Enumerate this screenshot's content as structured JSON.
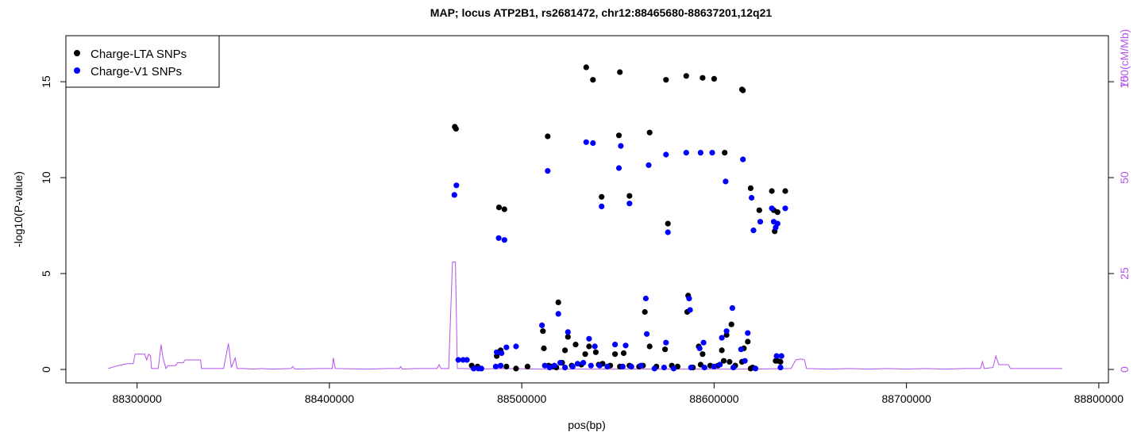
{
  "chart_data": {
    "type": "scatter",
    "title": "MAP; locus ATP2B1, rs2681472, chr12:88465680-88637201,12q21",
    "xlabel": "pos(bp)",
    "ylabel": "-log10(P-value)",
    "y2label": "100(cM/Mb)",
    "xlim": [
      88263000,
      88805000
    ],
    "ylim": [
      -0.7,
      17.4
    ],
    "y2lim": [
      -3.5,
      87
    ],
    "x_ticks": [
      88300000,
      88400000,
      88500000,
      88600000,
      88700000,
      88800000
    ],
    "x_tick_labels": [
      "88300000",
      "88400000",
      "88500000",
      "88600000",
      "88700000",
      "88800000"
    ],
    "y_ticks": [
      0,
      5,
      10,
      15
    ],
    "y_tick_labels": [
      "0",
      "5",
      "10",
      "15"
    ],
    "y2_ticks": [
      0,
      25,
      50,
      75,
      100
    ],
    "y2_tick_labels": [
      "0",
      "25",
      "50",
      "75",
      "100"
    ],
    "legend": {
      "position": "top-left",
      "entries": [
        {
          "label": "Charge-LTA SNPs",
          "color": "#000000"
        },
        {
          "label": "Charge-V1 SNPs",
          "color": "#0000ff"
        }
      ]
    },
    "colors": {
      "lta": "#000000",
      "v1": "#0000ff",
      "recomb": "#b450f0",
      "y2_axis": "#b450f0"
    },
    "series": [
      {
        "name": "Charge-LTA SNPs",
        "color": "#000000",
        "points": [
          [
            88465200,
            12.65
          ],
          [
            88465800,
            12.55
          ],
          [
            88488200,
            8.45
          ],
          [
            88491000,
            8.35
          ],
          [
            88513500,
            12.15
          ],
          [
            88533500,
            15.75
          ],
          [
            88537000,
            15.1
          ],
          [
            88550500,
            12.2
          ],
          [
            88551000,
            15.5
          ],
          [
            88541500,
            9.0
          ],
          [
            88556000,
            9.05
          ],
          [
            88566500,
            12.35
          ],
          [
            88575000,
            15.1
          ],
          [
            88576000,
            7.6
          ],
          [
            88585500,
            15.3
          ],
          [
            88594000,
            15.2
          ],
          [
            88600000,
            15.15
          ],
          [
            88605500,
            11.3
          ],
          [
            88614500,
            14.6
          ],
          [
            88615000,
            14.55
          ],
          [
            88619000,
            9.45
          ],
          [
            88623500,
            8.3
          ],
          [
            88630000,
            9.3
          ],
          [
            88631000,
            8.3
          ],
          [
            88633000,
            8.2
          ],
          [
            88637000,
            9.3
          ],
          [
            88631500,
            7.2
          ],
          [
            88519000,
            3.5
          ],
          [
            88511000,
            2.0
          ],
          [
            88511500,
            1.1
          ],
          [
            88522500,
            1.0
          ],
          [
            88524000,
            1.7
          ],
          [
            88528000,
            1.3
          ],
          [
            88533000,
            0.8
          ],
          [
            88535000,
            1.2
          ],
          [
            88538500,
            0.9
          ],
          [
            88542000,
            0.3
          ],
          [
            88548500,
            0.8
          ],
          [
            88553000,
            0.85
          ],
          [
            88566500,
            1.2
          ],
          [
            88564000,
            3.0
          ],
          [
            88574500,
            1.05
          ],
          [
            88586500,
            3.85
          ],
          [
            88586000,
            3.0
          ],
          [
            88592000,
            1.2
          ],
          [
            88594000,
            0.8
          ],
          [
            88604000,
            1.0
          ],
          [
            88606500,
            1.8
          ],
          [
            88609000,
            2.35
          ],
          [
            88614500,
            0.4
          ],
          [
            88615500,
            1.1
          ],
          [
            88617500,
            1.45
          ],
          [
            88620000,
            0.1
          ],
          [
            88633000,
            0.45
          ],
          [
            88634500,
            0.4
          ],
          [
            88474000,
            0.2
          ],
          [
            88477000,
            0.15
          ],
          [
            88487000,
            0.7
          ],
          [
            88489000,
            1.0
          ],
          [
            88492000,
            0.15
          ],
          [
            88497000,
            0.05
          ],
          [
            88503000,
            0.15
          ],
          [
            88514000,
            0.2
          ],
          [
            88516000,
            0.15
          ],
          [
            88518000,
            0.1
          ],
          [
            88521000,
            0.35
          ],
          [
            88526000,
            0.2
          ],
          [
            88531000,
            0.25
          ],
          [
            88540000,
            0.25
          ],
          [
            88546000,
            0.2
          ],
          [
            88551000,
            0.15
          ],
          [
            88556000,
            0.2
          ],
          [
            88561000,
            0.15
          ],
          [
            88563000,
            0.2
          ],
          [
            88570000,
            0.15
          ],
          [
            88578000,
            0.2
          ],
          [
            88581000,
            0.15
          ],
          [
            88589000,
            0.1
          ],
          [
            88593000,
            0.25
          ],
          [
            88598000,
            0.2
          ],
          [
            88602000,
            0.2
          ],
          [
            88605000,
            0.45
          ],
          [
            88608000,
            0.4
          ],
          [
            88611000,
            0.2
          ],
          [
            88619000,
            0.05
          ],
          [
            88632000,
            0.45
          ]
        ]
      },
      {
        "name": "Charge-V1 SNPs",
        "color": "#0000ff",
        "points": [
          [
            88465000,
            9.1
          ],
          [
            88466000,
            9.6
          ],
          [
            88488000,
            6.85
          ],
          [
            88491000,
            6.75
          ],
          [
            88513500,
            10.35
          ],
          [
            88533500,
            11.85
          ],
          [
            88537000,
            11.8
          ],
          [
            88550500,
            10.5
          ],
          [
            88551500,
            11.65
          ],
          [
            88541500,
            8.5
          ],
          [
            88556000,
            8.65
          ],
          [
            88566000,
            10.65
          ],
          [
            88575000,
            11.2
          ],
          [
            88576000,
            7.15
          ],
          [
            88585500,
            11.3
          ],
          [
            88593000,
            11.3
          ],
          [
            88599000,
            11.3
          ],
          [
            88606000,
            9.8
          ],
          [
            88615000,
            10.95
          ],
          [
            88619500,
            8.95
          ],
          [
            88620500,
            7.25
          ],
          [
            88624000,
            7.7
          ],
          [
            88630000,
            8.4
          ],
          [
            88631000,
            7.7
          ],
          [
            88633000,
            7.6
          ],
          [
            88637000,
            8.4
          ],
          [
            88632000,
            7.4
          ],
          [
            88510500,
            2.3
          ],
          [
            88519000,
            2.9
          ],
          [
            88524000,
            1.95
          ],
          [
            88535000,
            1.6
          ],
          [
            88538000,
            1.2
          ],
          [
            88548500,
            1.3
          ],
          [
            88554000,
            1.25
          ],
          [
            88564500,
            3.7
          ],
          [
            88565000,
            1.85
          ],
          [
            88575000,
            1.4
          ],
          [
            88587000,
            3.7
          ],
          [
            88587500,
            3.1
          ],
          [
            88592500,
            1.1
          ],
          [
            88594500,
            1.4
          ],
          [
            88604000,
            1.65
          ],
          [
            88606500,
            2.0
          ],
          [
            88609500,
            3.2
          ],
          [
            88614000,
            1.05
          ],
          [
            88617500,
            1.9
          ],
          [
            88616000,
            0.45
          ],
          [
            88632500,
            0.7
          ],
          [
            88635000,
            0.7
          ],
          [
            88467000,
            0.5
          ],
          [
            88469500,
            0.5
          ],
          [
            88471500,
            0.5
          ],
          [
            88475000,
            0.05
          ],
          [
            88477500,
            0.05
          ],
          [
            88479000,
            0.05
          ],
          [
            88487000,
            0.9
          ],
          [
            88489500,
            0.85
          ],
          [
            88492000,
            1.15
          ],
          [
            88497000,
            1.2
          ],
          [
            88486500,
            0.15
          ],
          [
            88489000,
            0.2
          ],
          [
            88512000,
            0.2
          ],
          [
            88514500,
            0.1
          ],
          [
            88517000,
            0.2
          ],
          [
            88520000,
            0.35
          ],
          [
            88522500,
            0.1
          ],
          [
            88526500,
            0.15
          ],
          [
            88529000,
            0.3
          ],
          [
            88532000,
            0.35
          ],
          [
            88536000,
            0.2
          ],
          [
            88540500,
            0.2
          ],
          [
            88544500,
            0.15
          ],
          [
            88552500,
            0.15
          ],
          [
            88557000,
            0.15
          ],
          [
            88562000,
            0.2
          ],
          [
            88569000,
            0.05
          ],
          [
            88574000,
            0.1
          ],
          [
            88579000,
            0.05
          ],
          [
            88588000,
            0.1
          ],
          [
            88595000,
            0.1
          ],
          [
            88600000,
            0.15
          ],
          [
            88603000,
            0.25
          ],
          [
            88610000,
            0.1
          ],
          [
            88621500,
            0.05
          ],
          [
            88634500,
            0.1
          ]
        ]
      }
    ],
    "recombination_rate": {
      "name": "100(cM/Mb)",
      "color": "#b450f0",
      "points": [
        [
          88285000,
          0.05
        ],
        [
          88290000,
          0.2
        ],
        [
          88295000,
          0.3
        ],
        [
          88298000,
          0.3
        ],
        [
          88299000,
          0.8
        ],
        [
          88304000,
          0.8
        ],
        [
          88305000,
          0.5
        ],
        [
          88306000,
          0.8
        ],
        [
          88307000,
          0.7
        ],
        [
          88307500,
          0.05
        ],
        [
          88311000,
          0.05
        ],
        [
          88312500,
          1.3
        ],
        [
          88313500,
          0.6
        ],
        [
          88315000,
          0.05
        ],
        [
          88316000,
          0.2
        ],
        [
          88320000,
          0.2
        ],
        [
          88321000,
          0.35
        ],
        [
          88324000,
          0.35
        ],
        [
          88325000,
          0.5
        ],
        [
          88333000,
          0.5
        ],
        [
          88333500,
          0.05
        ],
        [
          88345000,
          0.05
        ],
        [
          88347500,
          1.35
        ],
        [
          88349000,
          0.1
        ],
        [
          88351000,
          0.6
        ],
        [
          88352000,
          0.05
        ],
        [
          88356000,
          0.05
        ],
        [
          88360000,
          0.02
        ],
        [
          88365000,
          0.05
        ],
        [
          88370000,
          0.02
        ],
        [
          88380000,
          0.05
        ],
        [
          88381000,
          0.15
        ],
        [
          88382000,
          0.02
        ],
        [
          88395000,
          0.05
        ],
        [
          88401500,
          0.05
        ],
        [
          88402000,
          0.6
        ],
        [
          88403000,
          0.05
        ],
        [
          88420000,
          0.02
        ],
        [
          88430000,
          0.05
        ],
        [
          88436500,
          0.05
        ],
        [
          88437000,
          0.15
        ],
        [
          88438000,
          0.02
        ],
        [
          88445000,
          0.05
        ],
        [
          88456000,
          0.05
        ],
        [
          88457000,
          0.25
        ],
        [
          88458000,
          0.05
        ],
        [
          88462000,
          0.05
        ],
        [
          88464000,
          5.6
        ],
        [
          88465500,
          5.6
        ],
        [
          88466500,
          0.05
        ],
        [
          88470000,
          0.05
        ],
        [
          88475000,
          0.02
        ],
        [
          88490000,
          0.05
        ],
        [
          88510000,
          0.02
        ],
        [
          88530000,
          0.02
        ],
        [
          88560000,
          0.02
        ],
        [
          88590000,
          0.02
        ],
        [
          88620000,
          0.02
        ],
        [
          88640000,
          0.05
        ],
        [
          88642500,
          0.5
        ],
        [
          88645000,
          0.55
        ],
        [
          88647000,
          0.5
        ],
        [
          88648000,
          0.05
        ],
        [
          88660000,
          0.02
        ],
        [
          88670000,
          0.05
        ],
        [
          88680000,
          0.02
        ],
        [
          88690000,
          0.05
        ],
        [
          88700000,
          0.02
        ],
        [
          88710000,
          0.05
        ],
        [
          88720000,
          0.02
        ],
        [
          88730000,
          0.05
        ],
        [
          88738500,
          0.05
        ],
        [
          88739500,
          0.4
        ],
        [
          88740500,
          0.05
        ],
        [
          88745000,
          0.1
        ],
        [
          88746500,
          0.7
        ],
        [
          88748000,
          0.25
        ],
        [
          88753000,
          0.25
        ],
        [
          88754000,
          0.05
        ],
        [
          88765000,
          0.05
        ],
        [
          88781000,
          0.05
        ]
      ]
    }
  }
}
